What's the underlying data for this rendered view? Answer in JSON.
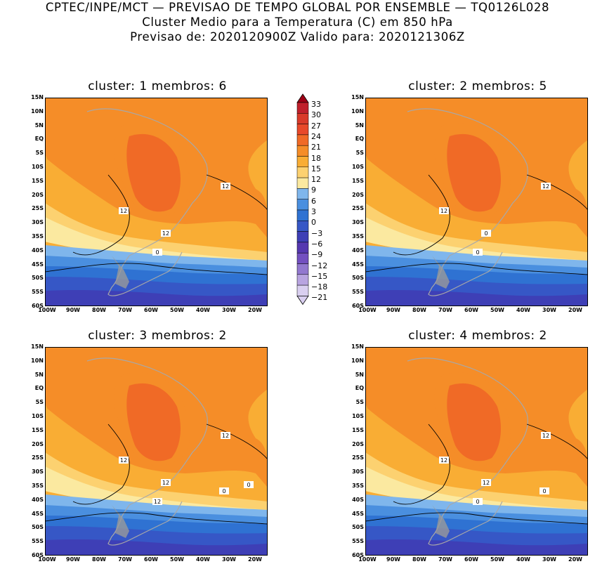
{
  "header": {
    "line1": "CPTEC/INPE/MCT — PREVISAO DE TEMPO GLOBAL POR ENSEMBLE — TQ0126L028",
    "line2": "Cluster Medio para a Temperatura (C) em 850 hPa",
    "line3": "Previsao de: 2020120900Z   Valido para: 2020121306Z"
  },
  "panels": [
    {
      "title": "cluster: 1   membros: 6",
      "contour_labels": [
        "12",
        "12",
        "12",
        "0"
      ]
    },
    {
      "title": "cluster: 2   membros: 5",
      "contour_labels": [
        "12",
        "12",
        "0",
        "0"
      ]
    },
    {
      "title": "cluster: 3   membros: 2",
      "contour_labels": [
        "12",
        "12",
        "12",
        "12",
        "0",
        "0"
      ]
    },
    {
      "title": "cluster: 4   membros: 2",
      "contour_labels": [
        "12",
        "12",
        "12",
        "0",
        "0"
      ]
    }
  ],
  "lat_ticks": [
    "15N",
    "10N",
    "5N",
    "EQ",
    "5S",
    "10S",
    "15S",
    "20S",
    "25S",
    "30S",
    "35S",
    "40S",
    "45S",
    "50S",
    "55S",
    "60S"
  ],
  "lon_ticks": [
    "100W",
    "90W",
    "80W",
    "70W",
    "60W",
    "50W",
    "40W",
    "30W",
    "20W"
  ],
  "colorbar": {
    "labels": [
      "33",
      "30",
      "27",
      "24",
      "21",
      "18",
      "15",
      "12",
      "9",
      "6",
      "3",
      "0",
      "−3",
      "−6",
      "−9",
      "−12",
      "−15",
      "−18",
      "−21"
    ],
    "colors": [
      "#9e0016",
      "#c0202c",
      "#d93a2a",
      "#e8492a",
      "#f06a26",
      "#f58d28",
      "#f9ad34",
      "#fcd170",
      "#fbe9a0",
      "#7fb6ec",
      "#4a8fdf",
      "#2f72d2",
      "#3657c6",
      "#3e3fb6",
      "#5538b0",
      "#7350c0",
      "#9278cf",
      "#b8a4e0",
      "#d9cff0"
    ]
  }
}
